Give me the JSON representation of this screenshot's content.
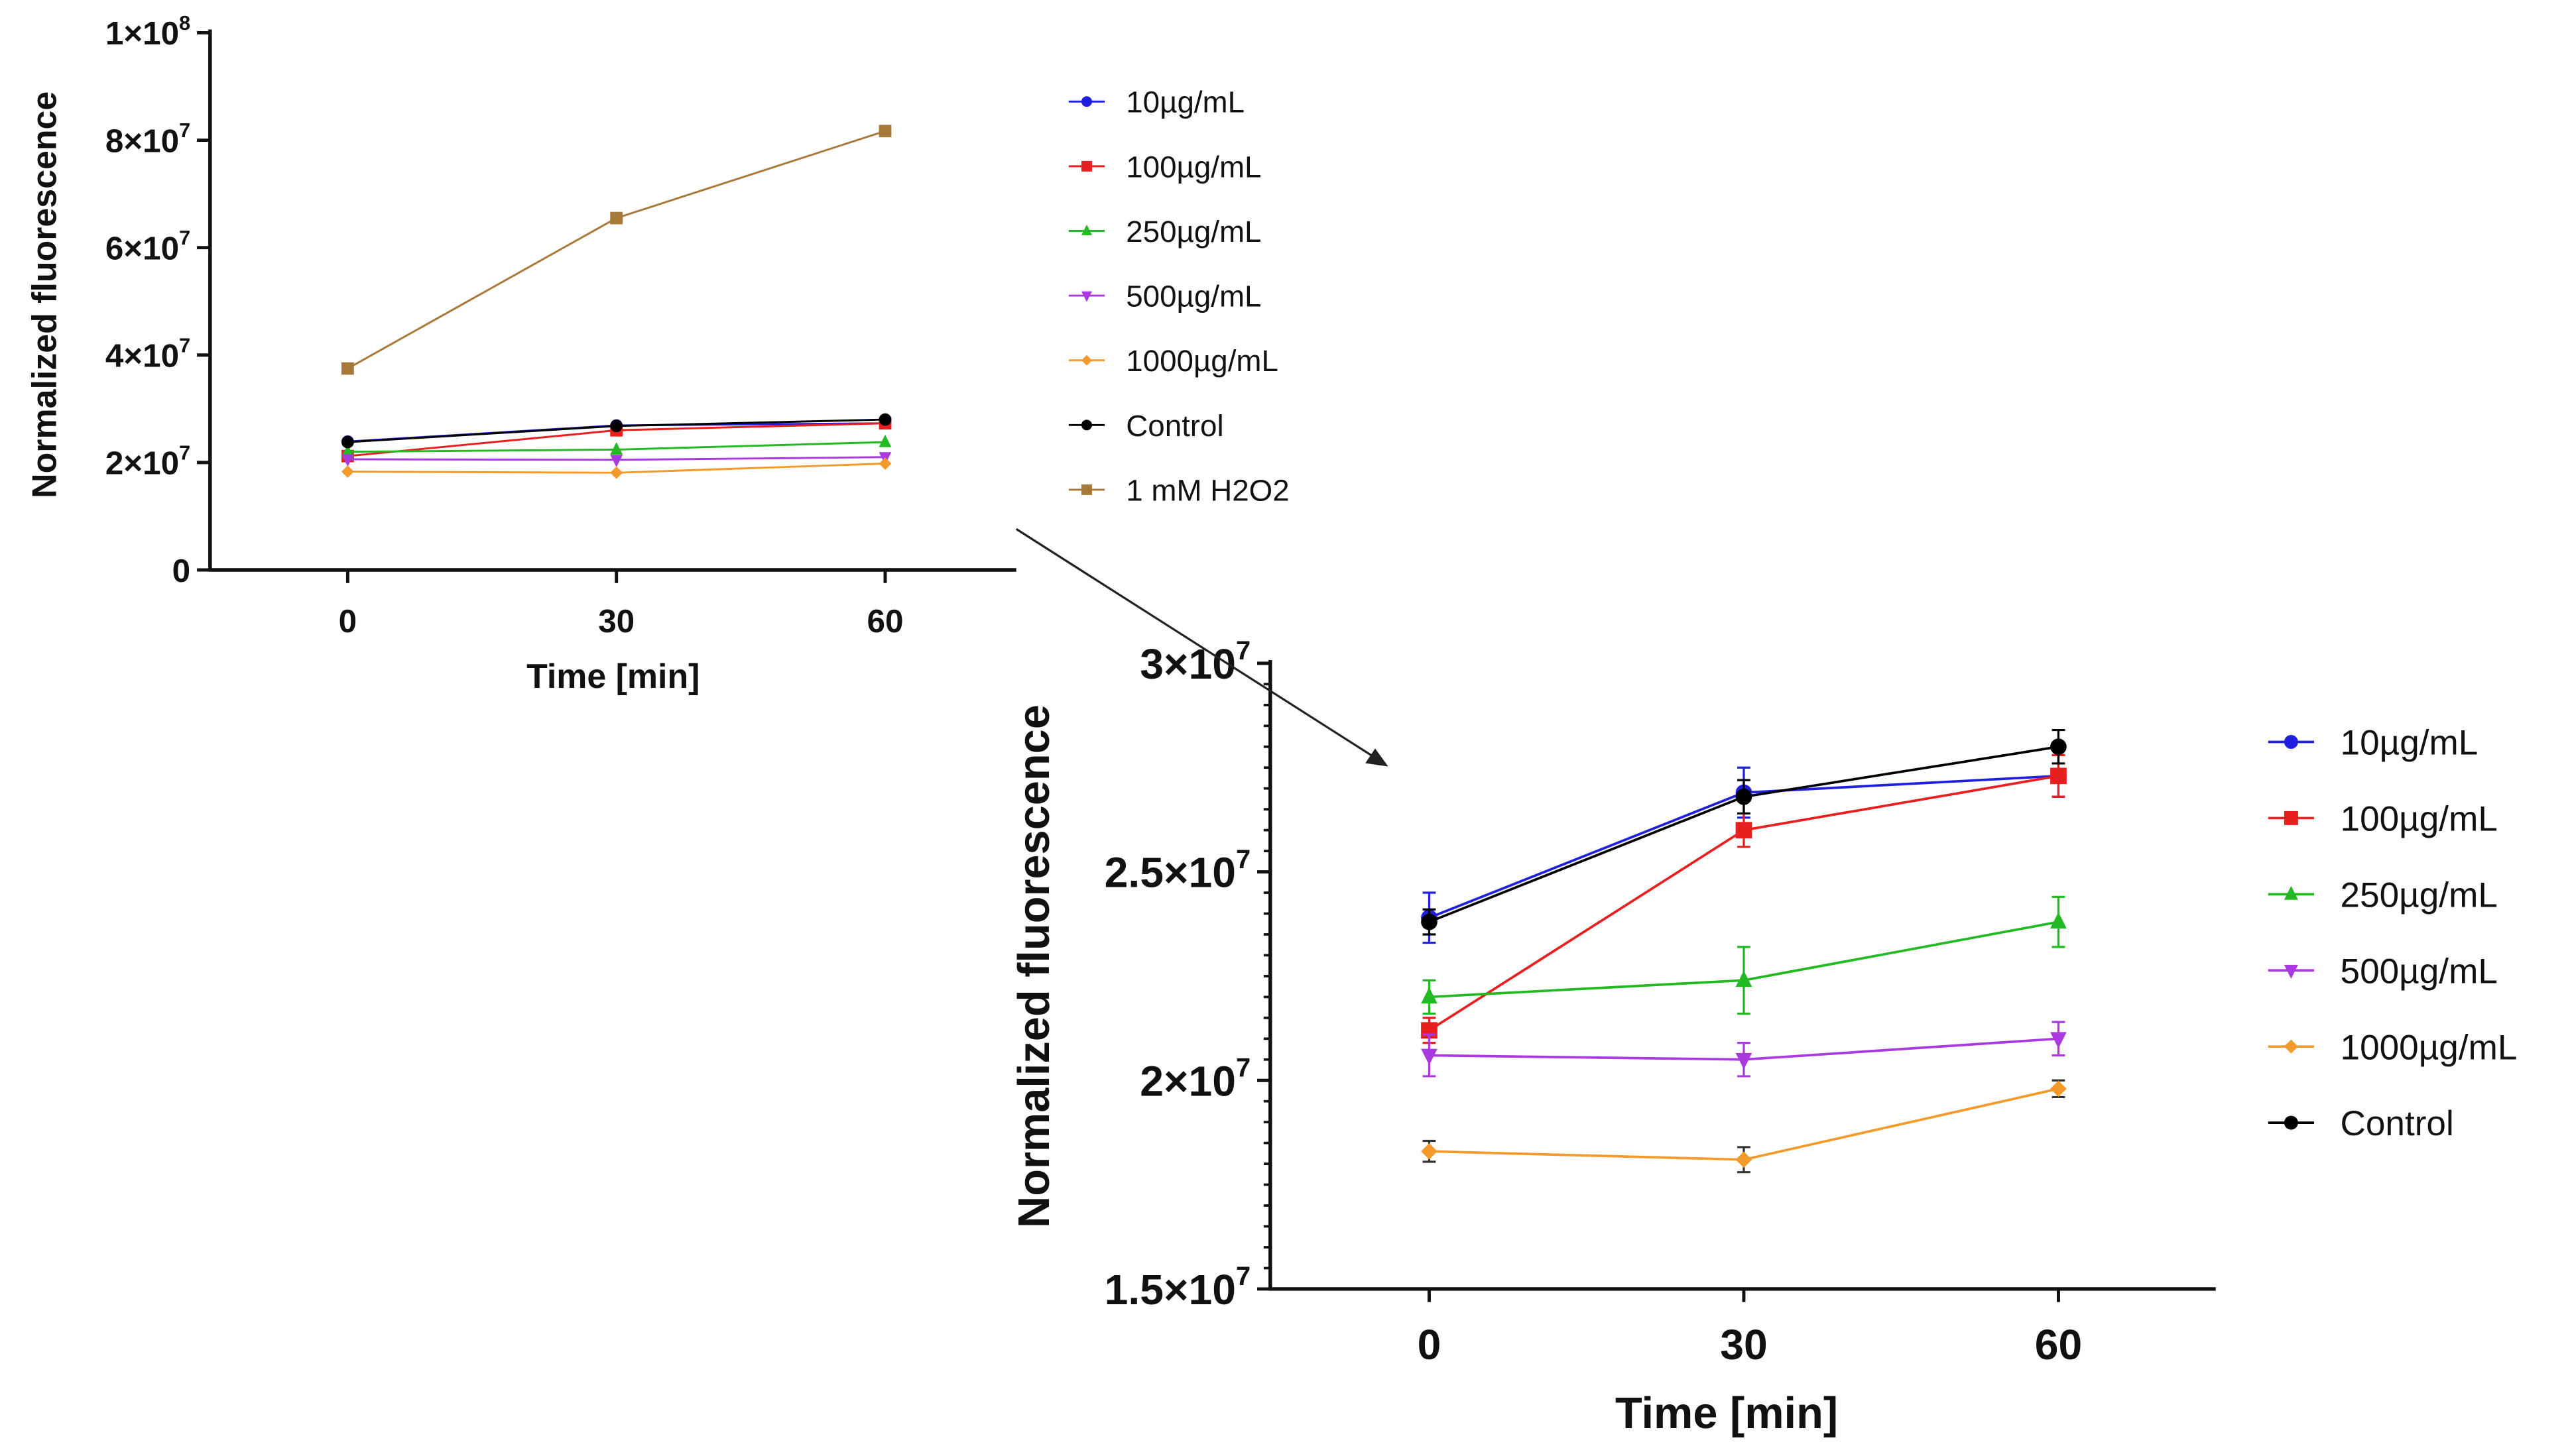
{
  "chart_data": [
    {
      "type": "line",
      "title": "",
      "xlabel": "Time [min]",
      "ylabel": "Normalized fluorescence",
      "x": [
        0,
        30,
        60
      ],
      "xticks": [
        "0",
        "30",
        "60"
      ],
      "ylim": [
        0,
        100000000
      ],
      "yticks": [
        0,
        20000000,
        40000000,
        60000000,
        80000000,
        100000000
      ],
      "ytick_labels": [
        "0",
        "2×10",
        "4×10",
        "6×10",
        "8×10",
        "1×10"
      ],
      "ytick_exponents": [
        "",
        "7",
        "7",
        "7",
        "7",
        "8"
      ],
      "legend_position": "right",
      "series": [
        {
          "name": "10µg/mL",
          "color": "#1f1fe0",
          "marker": "circle",
          "values": [
            23900000,
            26900000,
            27300000
          ]
        },
        {
          "name": "100µg/mL",
          "color": "#e81f1f",
          "marker": "square",
          "values": [
            21200000,
            26000000,
            27300000
          ]
        },
        {
          "name": "250µg/mL",
          "color": "#22b922",
          "marker": "triangle-up",
          "values": [
            22000000,
            22400000,
            23800000
          ]
        },
        {
          "name": "500µg/mL",
          "color": "#a83ae0",
          "marker": "triangle-down",
          "values": [
            20600000,
            20500000,
            21000000
          ]
        },
        {
          "name": "1000µg/mL",
          "color": "#f39a2a",
          "marker": "diamond",
          "values": [
            18300000,
            18100000,
            19800000
          ]
        },
        {
          "name": "Control",
          "color": "#000000",
          "marker": "circle",
          "values": [
            23800000,
            26800000,
            28000000
          ]
        },
        {
          "name": "1 mM H2O2",
          "color": "#a87a3a",
          "marker": "square",
          "values": [
            37500000,
            65500000,
            81700000
          ]
        }
      ]
    },
    {
      "type": "line",
      "title": "",
      "xlabel": "Time [min]",
      "ylabel": "Normalized fluorescence",
      "x": [
        0,
        30,
        60
      ],
      "xticks": [
        "0",
        "30",
        "60"
      ],
      "ylim": [
        15000000,
        30000000
      ],
      "yticks": [
        15000000,
        20000000,
        25000000,
        30000000
      ],
      "ytick_labels": [
        "1.5×10",
        "2×10",
        "2.5×10",
        "3×10"
      ],
      "ytick_exponents": [
        "7",
        "7",
        "7",
        "7"
      ],
      "legend_position": "right",
      "series": [
        {
          "name": "10µg/mL",
          "color": "#1f1fe0",
          "marker": "circle",
          "values": [
            23900000,
            26900000,
            27300000
          ],
          "errors": [
            600000,
            600000,
            500000
          ]
        },
        {
          "name": "100µg/mL",
          "color": "#e81f1f",
          "marker": "square",
          "values": [
            21200000,
            26000000,
            27300000
          ],
          "errors": [
            300000,
            400000,
            500000
          ]
        },
        {
          "name": "250µg/mL",
          "color": "#22b922",
          "marker": "triangle-up",
          "values": [
            22000000,
            22400000,
            23800000
          ],
          "errors": [
            400000,
            800000,
            600000
          ]
        },
        {
          "name": "500µg/mL",
          "color": "#a83ae0",
          "marker": "triangle-down",
          "values": [
            20600000,
            20500000,
            21000000
          ],
          "errors": [
            500000,
            400000,
            400000
          ]
        },
        {
          "name": "1000µg/mL",
          "color": "#f39a2a",
          "marker": "diamond",
          "values": [
            18300000,
            18100000,
            19800000
          ],
          "errors": [
            250000,
            300000,
            200000
          ]
        },
        {
          "name": "Control",
          "color": "#000000",
          "marker": "circle",
          "values": [
            23800000,
            26800000,
            28000000
          ],
          "errors": [
            300000,
            400000,
            400000
          ]
        }
      ]
    }
  ]
}
